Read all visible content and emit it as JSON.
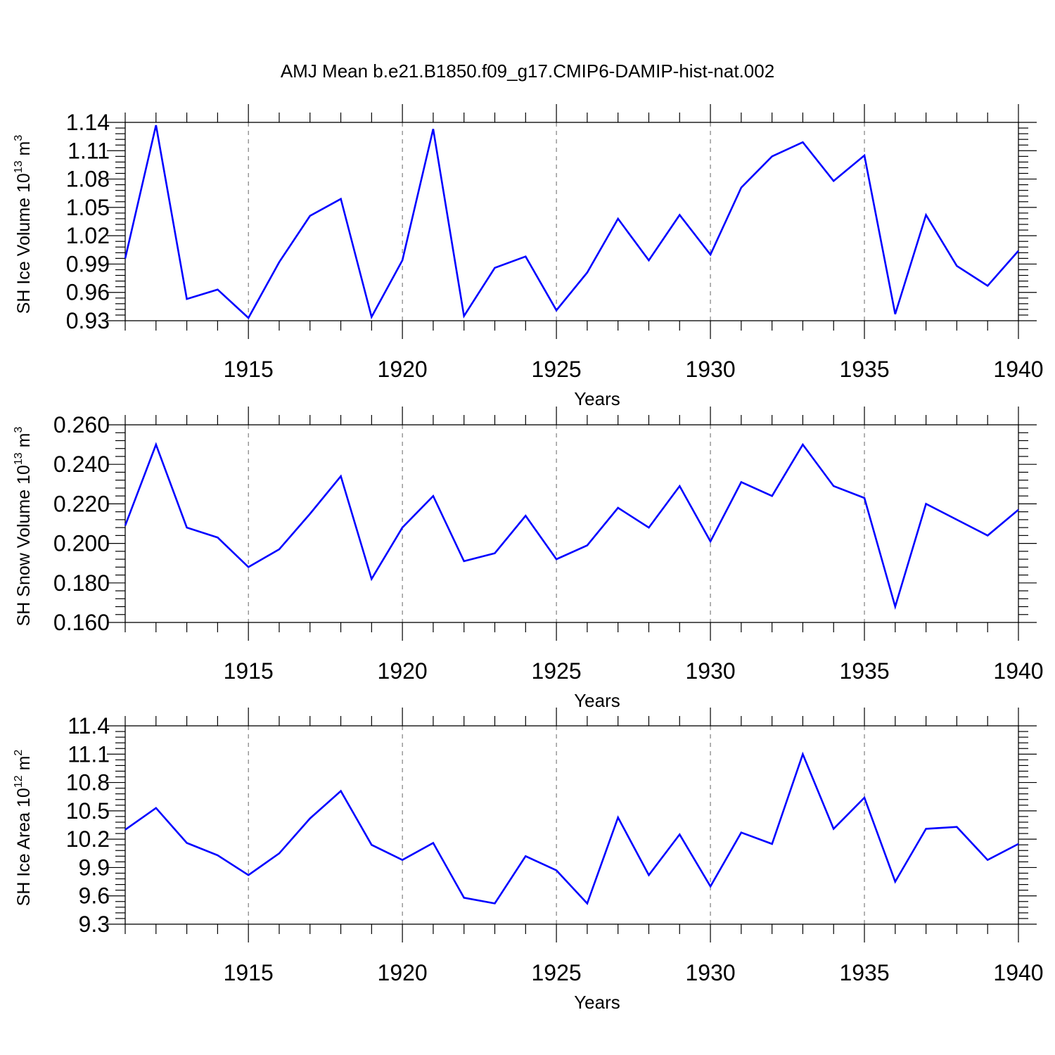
{
  "title": "AMJ Mean b.e21.B1850.f09_g17.CMIP6-DAMIP-hist-nat.002",
  "colors": {
    "series": "#0000ff",
    "grid": "#666666",
    "axes": "#000000"
  },
  "chart_data": [
    {
      "type": "line",
      "ylabel": {
        "main": "SH Ice Volume 10",
        "sup": "13",
        "unit": " m",
        "unit_sup": "3"
      },
      "xlabel": "Years",
      "xlim": [
        1911,
        1940
      ],
      "ylim": [
        0.93,
        1.14
      ],
      "yticks": [
        "0.93",
        "0.96",
        "0.99",
        "1.02",
        "1.05",
        "1.08",
        "1.11",
        "1.14"
      ],
      "xticks": [
        "1915",
        "1920",
        "1925",
        "1930",
        "1935",
        "1940"
      ],
      "grid": "dashed vertical at major x ticks",
      "series": [
        {
          "x": [
            1911,
            1912,
            1913,
            1914,
            1915,
            1916,
            1917,
            1918,
            1919,
            1920,
            1921,
            1922,
            1923,
            1924,
            1925,
            1926,
            1927,
            1928,
            1929,
            1930,
            1931,
            1932,
            1933,
            1934,
            1935,
            1936,
            1937,
            1938,
            1939,
            1940
          ],
          "values": [
            0.996,
            1.137,
            0.953,
            0.963,
            0.933,
            0.992,
            1.041,
            1.059,
            0.934,
            0.994,
            1.133,
            0.935,
            0.986,
            0.998,
            0.941,
            0.981,
            1.038,
            0.994,
            1.042,
            1.0,
            1.071,
            1.104,
            1.119,
            1.078,
            1.105,
            0.937,
            1.042,
            0.988,
            0.967,
            1.004
          ]
        }
      ]
    },
    {
      "type": "line",
      "ylabel": {
        "main": "SH Snow Volume 10",
        "sup": "13",
        "unit": " m",
        "unit_sup": "3"
      },
      "xlabel": "Years",
      "xlim": [
        1911,
        1940
      ],
      "ylim": [
        0.16,
        0.26
      ],
      "yticks": [
        "0.160",
        "0.180",
        "0.200",
        "0.220",
        "0.240",
        "0.260"
      ],
      "xticks": [
        "1915",
        "1920",
        "1925",
        "1930",
        "1935",
        "1940"
      ],
      "grid": "dashed vertical at major x ticks",
      "series": [
        {
          "x": [
            1911,
            1912,
            1913,
            1914,
            1915,
            1916,
            1917,
            1918,
            1919,
            1920,
            1921,
            1922,
            1923,
            1924,
            1925,
            1926,
            1927,
            1928,
            1929,
            1930,
            1931,
            1932,
            1933,
            1934,
            1935,
            1936,
            1937,
            1938,
            1939,
            1940
          ],
          "values": [
            0.209,
            0.25,
            0.208,
            0.203,
            0.188,
            0.197,
            0.215,
            0.234,
            0.182,
            0.208,
            0.224,
            0.191,
            0.195,
            0.214,
            0.192,
            0.199,
            0.218,
            0.208,
            0.229,
            0.201,
            0.231,
            0.224,
            0.25,
            0.229,
            0.223,
            0.168,
            0.22,
            0.212,
            0.204,
            0.217
          ]
        }
      ]
    },
    {
      "type": "line",
      "ylabel": {
        "main": "SH Ice Area 10",
        "sup": "12",
        "unit": " m",
        "unit_sup": "2"
      },
      "xlabel": "Years",
      "xlim": [
        1911,
        1940
      ],
      "ylim": [
        9.3,
        11.4
      ],
      "yticks": [
        "9.3",
        "9.6",
        "9.9",
        "10.2",
        "10.5",
        "10.8",
        "11.1",
        "11.4"
      ],
      "xticks": [
        "1915",
        "1920",
        "1925",
        "1930",
        "1935",
        "1940"
      ],
      "grid": "dashed vertical at major x ticks",
      "series": [
        {
          "x": [
            1911,
            1912,
            1913,
            1914,
            1915,
            1916,
            1917,
            1918,
            1919,
            1920,
            1921,
            1922,
            1923,
            1924,
            1925,
            1926,
            1927,
            1928,
            1929,
            1930,
            1931,
            1932,
            1933,
            1934,
            1935,
            1936,
            1937,
            1938,
            1939,
            1940
          ],
          "values": [
            10.3,
            10.53,
            10.16,
            10.03,
            9.82,
            10.05,
            10.42,
            10.71,
            10.14,
            9.98,
            10.16,
            9.58,
            9.52,
            10.02,
            9.87,
            9.52,
            10.43,
            9.82,
            10.25,
            9.7,
            10.27,
            10.15,
            11.1,
            10.31,
            10.64,
            9.75,
            10.31,
            10.33,
            9.98,
            10.15
          ]
        }
      ]
    }
  ]
}
